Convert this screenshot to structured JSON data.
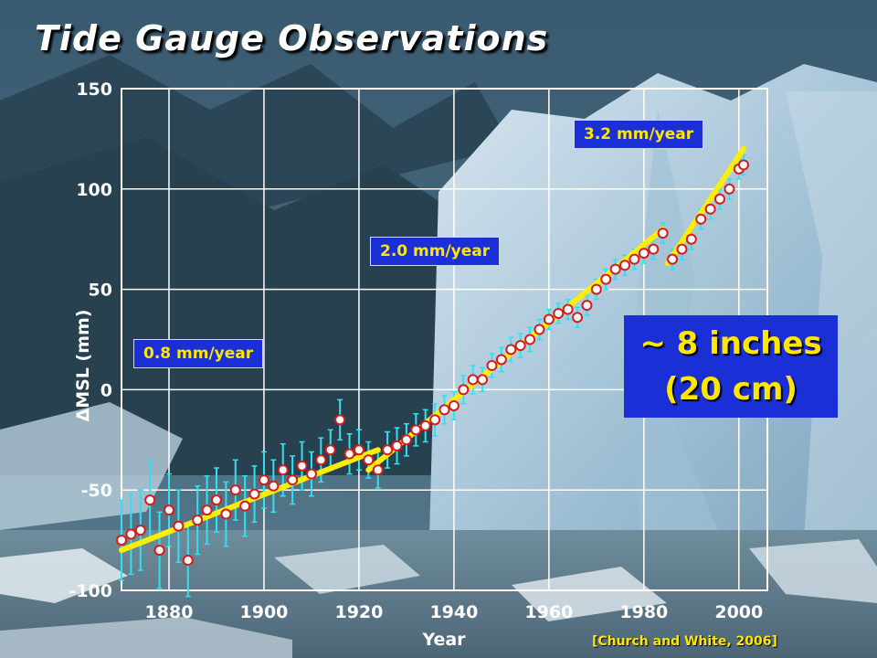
{
  "title": "Tide Gauge Observations",
  "citation": "[Church and White, 2006]",
  "callout": {
    "line1": "~ 8 inches",
    "line2": "(20 cm)"
  },
  "colors": {
    "observations_fill": "#ffffff",
    "observations_stroke": "#d81b1b",
    "error_bars": "#33e0f0",
    "trend": "#ffee00",
    "label_box": "#1a2fd6",
    "label_text": "#ffe600"
  },
  "chart_data": {
    "type": "scatter",
    "title": "Tide Gauge Observations",
    "xlabel": "Year",
    "ylabel": "ΔMSL (mm)",
    "xlim": [
      1870,
      2006
    ],
    "ylim": [
      -100,
      150
    ],
    "xticks": [
      1880,
      1900,
      1920,
      1940,
      1960,
      1980,
      2000
    ],
    "yticks": [
      -100,
      -50,
      0,
      50,
      100,
      150
    ],
    "grid": true,
    "series": [
      {
        "kind": "annual-means-with-error-bars",
        "x": [
          1870,
          1872,
          1874,
          1876,
          1878,
          1880,
          1882,
          1884,
          1886,
          1888,
          1890,
          1892,
          1894,
          1896,
          1898,
          1900,
          1902,
          1904,
          1906,
          1908,
          1910,
          1912,
          1914,
          1916,
          1918,
          1920,
          1922,
          1924,
          1926,
          1928,
          1930,
          1932,
          1934,
          1936,
          1938,
          1940,
          1942,
          1944,
          1946,
          1948,
          1950,
          1952,
          1954,
          1956,
          1958,
          1960,
          1962,
          1964,
          1966,
          1968,
          1970,
          1972,
          1974,
          1976,
          1978,
          1980,
          1982,
          1984,
          1986,
          1988,
          1990,
          1992,
          1994,
          1996,
          1998,
          2000,
          2001
        ],
        "y": [
          -75,
          -72,
          -70,
          -55,
          -80,
          -60,
          -68,
          -85,
          -65,
          -60,
          -55,
          -62,
          -50,
          -58,
          -52,
          -45,
          -48,
          -40,
          -45,
          -38,
          -42,
          -35,
          -30,
          -15,
          -32,
          -30,
          -35,
          -40,
          -30,
          -28,
          -25,
          -20,
          -18,
          -15,
          -10,
          -8,
          0,
          5,
          5,
          12,
          15,
          20,
          22,
          25,
          30,
          35,
          38,
          40,
          36,
          42,
          50,
          55,
          60,
          62,
          65,
          68,
          70,
          78,
          65,
          70,
          75,
          85,
          90,
          95,
          100,
          110,
          112
        ],
        "error": [
          20,
          20,
          20,
          20,
          19,
          18,
          18,
          18,
          17,
          17,
          16,
          16,
          15,
          15,
          14,
          14,
          13,
          13,
          12,
          12,
          11,
          11,
          10,
          10,
          10,
          10,
          9,
          9,
          9,
          9,
          8,
          8,
          8,
          8,
          7,
          7,
          7,
          7,
          6,
          6,
          6,
          6,
          6,
          6,
          5,
          5,
          5,
          5,
          5,
          5,
          5,
          5,
          5,
          5,
          5,
          5,
          5,
          5,
          5,
          5,
          5,
          5,
          5,
          5,
          5,
          5,
          5
        ]
      }
    ],
    "trends": [
      {
        "label": "0.8 mm/year",
        "x": [
          1870,
          1924
        ],
        "y": [
          -80,
          -30
        ]
      },
      {
        "label": "2.0 mm/year",
        "x": [
          1922,
          1984
        ],
        "y": [
          -40,
          80
        ]
      },
      {
        "label": "3.2 mm/year",
        "x": [
          1985,
          2001
        ],
        "y": [
          63,
          120
        ]
      }
    ]
  }
}
